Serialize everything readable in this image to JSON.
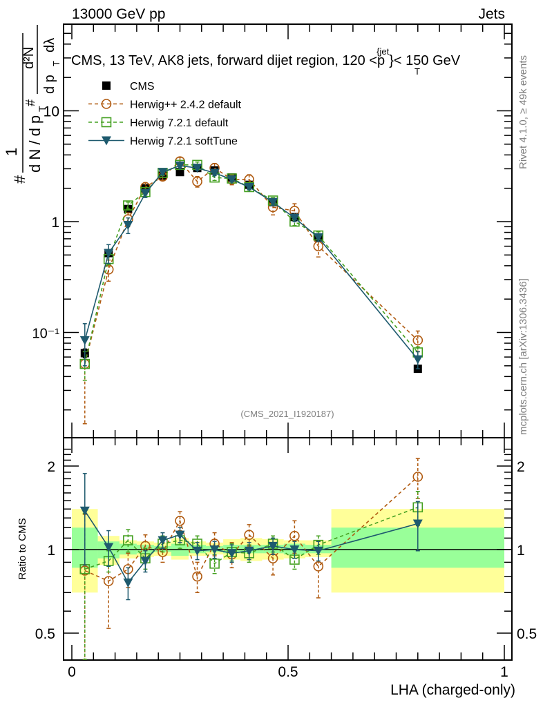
{
  "header": {
    "left": "13000 GeV pp",
    "right": "Jets"
  },
  "side_labels": {
    "rivet": "Rivet 4.1.0, ≥ 49k events",
    "mcplots": "mcplots.cern.ch [arXiv:1306.3436]"
  },
  "chart_data": [
    {
      "type": "scatter",
      "panel": "main",
      "title": "CMS, 13 TeV, AK8 jets, forward dijet region, 120 <p_T^{jet}< 150 GeV",
      "title_parts": {
        "pre": "CMS, 13 TeV, AK8 jets, forward dijet region, 120 <p",
        "sup": "{jet",
        "sub": "T",
        "post": "}< 150 GeV"
      },
      "watermark": "(CMS_2021_I1920187)",
      "ylabel": "1/dN/dp_T  d²N/dp_T dλ",
      "ylabel_parts": {
        "hash": "#",
        "one": "1",
        "denom": "d N / d p",
        "t": "T",
        "num": "d²N",
        "den2": "d p",
        "lam": "dλ"
      },
      "xlabel": "",
      "yscale": "log",
      "ylim": [
        0.015,
        60
      ],
      "xlim": [
        -0.02,
        1.02
      ],
      "ytick_labels": [
        {
          "value": 10,
          "label": "10"
        },
        {
          "value": 1,
          "label": "1"
        },
        {
          "value": 0.1,
          "label": "10⁻¹"
        }
      ],
      "legend": {
        "placement": "top-left",
        "entries": [
          {
            "name": "CMS",
            "marker": "square-filled",
            "color": "#000000",
            "line": "none"
          },
          {
            "name": "Herwig++ 2.4.2 default",
            "marker": "circle-open",
            "color": "#b05a10",
            "line": "dashed"
          },
          {
            "name": "Herwig 7.2.1 default",
            "marker": "square-open",
            "color": "#44a020",
            "line": "dashed"
          },
          {
            "name": "Herwig 7.2.1 softTune",
            "marker": "triangle-down-filled",
            "color": "#1e5a6e",
            "line": "solid"
          }
        ]
      },
      "x": [
        0.03,
        0.085,
        0.13,
        0.17,
        0.21,
        0.25,
        0.29,
        0.33,
        0.37,
        0.41,
        0.465,
        0.515,
        0.57,
        0.8
      ],
      "series": [
        {
          "name": "CMS",
          "values": [
            0.065,
            0.52,
            1.3,
            2.0,
            2.6,
            2.8,
            3.05,
            2.9,
            2.5,
            2.15,
            1.5,
            1.1,
            0.72,
            0.047
          ],
          "err": [
            0.006,
            0.03,
            0.06,
            0.08,
            0.1,
            0.1,
            0.1,
            0.1,
            0.08,
            0.08,
            0.06,
            0.05,
            0.03,
            0.003
          ]
        },
        {
          "name": "Herwig++ 2.4.2 default",
          "values": [
            0.052,
            0.37,
            1.05,
            2.05,
            2.55,
            3.5,
            2.3,
            3.05,
            2.4,
            2.4,
            1.35,
            1.25,
            0.6,
            0.085
          ],
          "err": [
            0.037,
            0.08,
            0.15,
            0.2,
            0.2,
            0.3,
            0.25,
            0.3,
            0.25,
            0.25,
            0.2,
            0.2,
            0.12,
            0.018
          ]
        },
        {
          "name": "Herwig 7.2.1 default",
          "values": [
            0.052,
            0.46,
            1.4,
            1.85,
            2.75,
            3.25,
            3.25,
            2.5,
            2.45,
            2.05,
            1.55,
            1.0,
            0.75,
            0.066
          ],
          "err": [
            0.015,
            0.05,
            0.1,
            0.1,
            0.15,
            0.2,
            0.2,
            0.15,
            0.15,
            0.12,
            0.1,
            0.08,
            0.06,
            0.008
          ]
        },
        {
          "name": "Herwig 7.2.1 softTune",
          "values": [
            0.085,
            0.52,
            0.93,
            1.8,
            2.8,
            3.2,
            3.05,
            2.75,
            2.4,
            2.05,
            1.5,
            1.08,
            0.72,
            0.057
          ],
          "err": [
            0.035,
            0.1,
            0.15,
            0.15,
            0.15,
            0.15,
            0.15,
            0.15,
            0.12,
            0.1,
            0.1,
            0.08,
            0.06,
            0.01
          ]
        }
      ]
    },
    {
      "type": "scatter",
      "panel": "ratio",
      "ylabel": "Ratio to CMS",
      "xlabel": "LHA (charged-only)",
      "yscale": "log",
      "ylim": [
        0.44,
        2.3
      ],
      "xlim": [
        -0.02,
        1.02
      ],
      "ytick_labels": [
        {
          "value": 2,
          "label": "2"
        },
        {
          "value": 1,
          "label": "1"
        },
        {
          "value": 0.5,
          "label": "0.5"
        }
      ],
      "xtick_labels": [
        {
          "value": 0,
          "label": "0"
        },
        {
          "value": 0.5,
          "label": "0.5"
        },
        {
          "value": 1,
          "label": "1"
        }
      ],
      "bands": {
        "bin_edges": [
          0.0,
          0.06,
          0.11,
          0.15,
          0.19,
          0.23,
          0.27,
          0.31,
          0.35,
          0.39,
          0.44,
          0.49,
          0.54,
          0.6,
          1.0
        ],
        "stat_lo": [
          0.86,
          0.93,
          0.96,
          0.97,
          0.98,
          0.95,
          0.97,
          0.98,
          0.97,
          0.97,
          0.97,
          0.96,
          0.97,
          0.86
        ],
        "stat_hi": [
          1.2,
          1.07,
          1.05,
          1.04,
          1.03,
          1.05,
          1.04,
          1.03,
          1.04,
          1.04,
          1.04,
          1.05,
          1.04,
          1.2
        ],
        "total_lo": [
          0.7,
          0.88,
          0.93,
          0.94,
          0.95,
          0.92,
          0.95,
          0.96,
          0.92,
          0.91,
          0.92,
          0.93,
          0.94,
          0.7
        ],
        "total_hi": [
          1.4,
          1.12,
          1.08,
          1.07,
          1.06,
          1.1,
          1.07,
          1.06,
          1.09,
          1.1,
          1.09,
          1.08,
          1.08,
          1.4
        ],
        "stat_color": "#99ff99",
        "total_color": "#ffff99"
      },
      "x": [
        0.03,
        0.085,
        0.13,
        0.17,
        0.21,
        0.25,
        0.29,
        0.33,
        0.37,
        0.41,
        0.465,
        0.515,
        0.57,
        0.8
      ],
      "series": [
        {
          "name": "Herwig++ 2.4.2 default",
          "values": [
            0.84,
            0.77,
            0.85,
            1.03,
            0.98,
            1.27,
            0.8,
            1.05,
            0.96,
            1.13,
            0.93,
            1.12,
            0.87,
            1.83
          ],
          "err": [
            0.5,
            0.25,
            0.12,
            0.1,
            0.08,
            0.1,
            0.1,
            0.1,
            0.1,
            0.1,
            0.12,
            0.15,
            0.2,
            0.3
          ]
        },
        {
          "name": "Herwig 7.2.1 default",
          "values": [
            0.85,
            0.91,
            1.08,
            0.93,
            1.05,
            1.08,
            1.05,
            0.89,
            0.98,
            0.97,
            1.05,
            0.92,
            1.04,
            1.42
          ],
          "err": [
            0.5,
            0.08,
            0.1,
            0.08,
            0.07,
            0.07,
            0.07,
            0.07,
            0.07,
            0.07,
            0.07,
            0.07,
            0.08,
            0.2
          ]
        },
        {
          "name": "Herwig 7.2.1 softTune",
          "values": [
            1.38,
            1.02,
            0.76,
            0.91,
            1.08,
            1.13,
            0.99,
            1.0,
            0.97,
            0.99,
            1.03,
            1.0,
            0.99,
            1.24
          ],
          "err": [
            0.5,
            0.15,
            0.1,
            0.08,
            0.07,
            0.07,
            0.07,
            0.07,
            0.07,
            0.07,
            0.07,
            0.07,
            0.08,
            0.25
          ]
        }
      ]
    }
  ]
}
